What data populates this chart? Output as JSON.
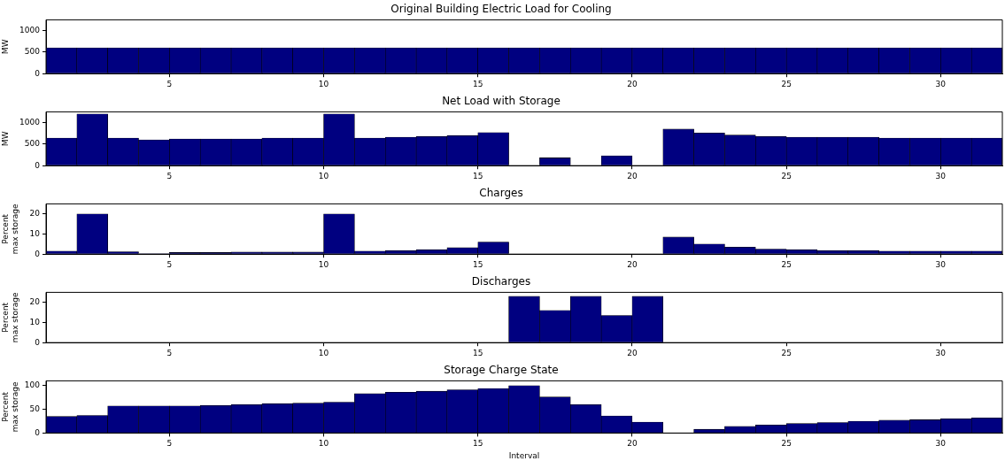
{
  "chart_data": [
    {
      "type": "histogram",
      "title": "Original Building Electric Load for Cooling",
      "ylabel": "MW",
      "bins": [
        1,
        2,
        3,
        4,
        5,
        6,
        7,
        8,
        9,
        10,
        11,
        12,
        13,
        14,
        15,
        16,
        17,
        18,
        19,
        20,
        21,
        22,
        23,
        24,
        25,
        26,
        27,
        28,
        29,
        30,
        31,
        32
      ],
      "values": [
        600,
        600,
        600,
        600,
        600,
        600,
        600,
        600,
        600,
        600,
        600,
        600,
        600,
        600,
        600,
        600,
        600,
        600,
        600,
        600,
        600,
        600,
        600,
        600,
        600,
        600,
        600,
        600,
        600,
        600,
        600
      ],
      "color": "#000080",
      "xlim": [
        1,
        32
      ],
      "xticks": [
        5,
        10,
        15,
        20,
        25,
        30
      ],
      "ylim": [
        0,
        1250
      ],
      "yticks": [
        0,
        500,
        1000
      ],
      "grid": false
    },
    {
      "type": "histogram",
      "title": "Net Load with Storage",
      "ylabel": "MW",
      "bins": [
        1,
        2,
        3,
        4,
        5,
        6,
        7,
        8,
        9,
        10,
        11,
        12,
        13,
        14,
        15,
        16,
        17,
        18,
        19,
        20,
        21,
        22,
        23,
        24,
        25,
        26,
        27,
        28,
        29,
        30,
        31,
        32
      ],
      "values": [
        640,
        1200,
        640,
        600,
        620,
        620,
        620,
        640,
        640,
        1200,
        640,
        660,
        680,
        700,
        770,
        0,
        180,
        0,
        230,
        0,
        850,
        760,
        710,
        680,
        660,
        660,
        660,
        640,
        640,
        640,
        640
      ],
      "color": "#000080",
      "xlim": [
        1,
        32
      ],
      "xticks": [
        5,
        10,
        15,
        20,
        25,
        30
      ],
      "ylim": [
        0,
        1250
      ],
      "yticks": [
        0,
        500,
        1000
      ],
      "grid": false
    },
    {
      "type": "histogram",
      "title": "Charges",
      "ylabel": "Percent\nmax storage",
      "bins": [
        1,
        2,
        3,
        4,
        5,
        6,
        7,
        8,
        9,
        10,
        11,
        12,
        13,
        14,
        15,
        16,
        17,
        18,
        19,
        20,
        21,
        22,
        23,
        24,
        25,
        26,
        27,
        28,
        29,
        30,
        31,
        32
      ],
      "values": [
        1.5,
        20,
        1.2,
        0.2,
        0.8,
        0.8,
        1,
        1,
        1,
        20,
        1.5,
        1.8,
        2.2,
        3.2,
        6,
        0,
        0,
        0,
        0,
        0,
        8.5,
        5,
        3.5,
        2.5,
        2.2,
        1.8,
        1.8,
        1.5,
        1.5,
        1.5,
        1.5
      ],
      "color": "#000080",
      "xlim": [
        1,
        32
      ],
      "xticks": [
        5,
        10,
        15,
        20,
        25,
        30
      ],
      "ylim": [
        0,
        25
      ],
      "yticks": [
        0,
        10,
        20
      ],
      "grid": false
    },
    {
      "type": "histogram",
      "title": "Discharges",
      "ylabel": "Percent\nmax storage",
      "bins": [
        1,
        2,
        3,
        4,
        5,
        6,
        7,
        8,
        9,
        10,
        11,
        12,
        13,
        14,
        15,
        16,
        17,
        18,
        19,
        20,
        21,
        22,
        23,
        24,
        25,
        26,
        27,
        28,
        29,
        30,
        31,
        32
      ],
      "values": [
        0,
        0,
        0,
        0,
        0,
        0,
        0,
        0,
        0,
        0,
        0,
        0,
        0,
        0,
        0,
        23,
        16,
        23,
        13.5,
        23,
        0,
        0,
        0,
        0,
        0,
        0,
        0,
        0,
        0,
        0,
        0
      ],
      "color": "#000080",
      "xlim": [
        1,
        32
      ],
      "xticks": [
        5,
        10,
        15,
        20,
        25,
        30
      ],
      "ylim": [
        0,
        25
      ],
      "yticks": [
        0,
        10,
        20
      ],
      "grid": false
    },
    {
      "type": "histogram",
      "title": "Storage Charge State",
      "ylabel": "Percent\nmax storage",
      "xlabel": "Interval",
      "bins": [
        1,
        2,
        3,
        4,
        5,
        6,
        7,
        8,
        9,
        10,
        11,
        12,
        13,
        14,
        15,
        16,
        17,
        18,
        19,
        20,
        21,
        22,
        23,
        24,
        25,
        26,
        27,
        28,
        29,
        30,
        31,
        32
      ],
      "values": [
        35,
        37,
        57,
        57,
        57,
        58,
        60,
        62,
        63,
        65,
        83,
        86,
        88,
        91,
        94,
        100,
        76,
        60,
        36,
        23,
        0,
        8,
        14,
        17,
        20,
        22,
        25,
        27,
        28,
        30,
        32
      ],
      "color": "#000080",
      "xlim": [
        1,
        32
      ],
      "xticks": [
        5,
        10,
        15,
        20,
        25,
        30
      ],
      "ylim": [
        0,
        110
      ],
      "yticks": [
        0,
        50,
        100
      ],
      "grid": false
    }
  ]
}
